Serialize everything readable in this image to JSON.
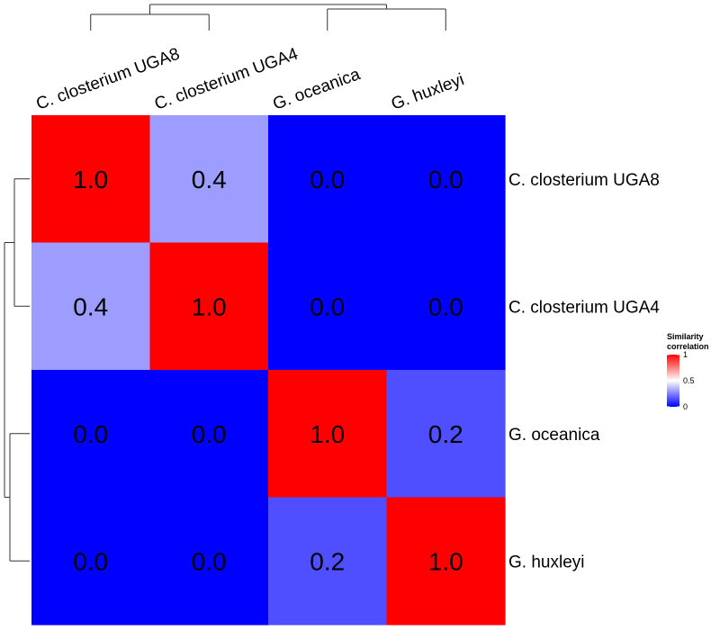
{
  "chart_data": {
    "type": "heatmap",
    "rows": [
      "C. closterium UGA8",
      "C. closterium UGA4",
      "G. oceanica",
      "G. huxleyi"
    ],
    "columns": [
      "C. closterium UGA8",
      "C. closterium UGA4",
      "G. oceanica",
      "G. huxleyi"
    ],
    "values": [
      [
        1.0,
        0.4,
        0.0,
        0.0
      ],
      [
        0.4,
        1.0,
        0.0,
        0.0
      ],
      [
        0.0,
        0.0,
        1.0,
        0.2
      ],
      [
        0.0,
        0.0,
        0.2,
        1.0
      ]
    ],
    "cell_labels": [
      [
        "1.0",
        "0.4",
        "0.0",
        "0.0"
      ],
      [
        "0.4",
        "1.0",
        "0.0",
        "0.0"
      ],
      [
        "0.0",
        "0.0",
        "1.0",
        "0.2"
      ],
      [
        "0.0",
        "0.0",
        "0.2",
        "1.0"
      ]
    ],
    "clustering": "hierarchical dendrograms on rows (left) and columns (top)",
    "legend": {
      "title_line1": "Similarity",
      "title_line2": "correlation",
      "ticks": [
        "1",
        "0.5",
        "0"
      ],
      "tick_values": [
        1,
        0.5,
        0
      ],
      "placement": "right",
      "colors": {
        "low": "#0000ff",
        "mid": "#ffffff",
        "high": "#ff0000"
      }
    }
  }
}
